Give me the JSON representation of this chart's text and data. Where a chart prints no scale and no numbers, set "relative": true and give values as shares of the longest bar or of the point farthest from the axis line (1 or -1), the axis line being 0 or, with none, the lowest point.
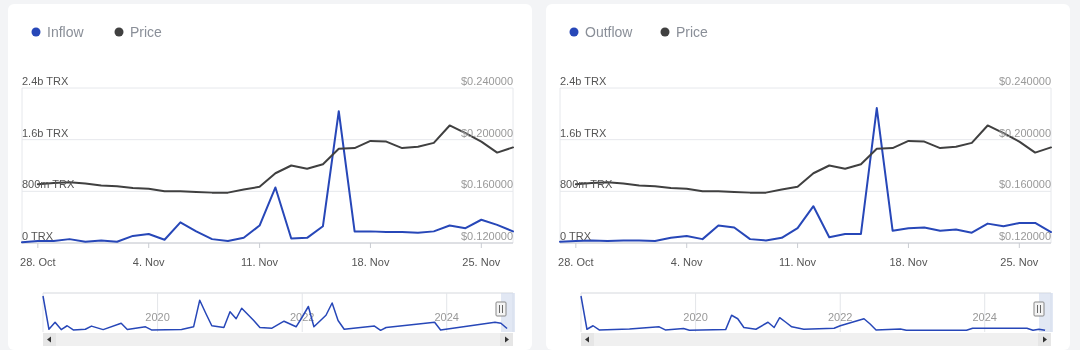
{
  "chart_data": [
    {
      "type": "line",
      "legend": "top left",
      "grid": "y",
      "xlim": [
        "2024-10-27",
        "2024-11-27"
      ],
      "x": [
        "2024-10-27",
        "2024-10-28",
        "2024-10-29",
        "2024-10-30",
        "2024-10-31",
        "2024-11-01",
        "2024-11-02",
        "2024-11-03",
        "2024-11-04",
        "2024-11-05",
        "2024-11-06",
        "2024-11-07",
        "2024-11-08",
        "2024-11-09",
        "2024-11-10",
        "2024-11-11",
        "2024-11-12",
        "2024-11-13",
        "2024-11-14",
        "2024-11-15",
        "2024-11-16",
        "2024-11-17",
        "2024-11-18",
        "2024-11-19",
        "2024-11-20",
        "2024-11-21",
        "2024-11-22",
        "2024-11-23",
        "2024-11-24",
        "2024-11-25",
        "2024-11-26",
        "2024-11-27"
      ],
      "xticks": [
        {
          "value": "2024-10-28",
          "label": "28. Oct"
        },
        {
          "value": "2024-11-04",
          "label": "4. Nov"
        },
        {
          "value": "2024-11-11",
          "label": "11. Nov"
        },
        {
          "value": "2024-11-18",
          "label": "18. Nov"
        },
        {
          "value": "2024-11-25",
          "label": "25. Nov"
        }
      ],
      "ylim": [
        0,
        2400000000
      ],
      "yticks": [
        {
          "value": 0,
          "label": "0 TRX"
        },
        {
          "value": 800000000,
          "label": "800m TRX"
        },
        {
          "value": 1600000000,
          "label": "1.6b TRX"
        },
        {
          "value": 2400000000,
          "label": "2.4b TRX"
        }
      ],
      "y2lim": [
        0.12,
        0.24
      ],
      "y2ticks": [
        {
          "value": 0.12,
          "label": "$0.120000"
        },
        {
          "value": 0.16,
          "label": "$0.160000"
        },
        {
          "value": 0.2,
          "label": "$0.200000"
        },
        {
          "value": 0.24,
          "label": "$0.240000"
        }
      ],
      "series": [
        {
          "name": "Inflow",
          "color": "#2747b8",
          "values": [
            10000000,
            30000000,
            30000000,
            60000000,
            20000000,
            40000000,
            20000000,
            110000000,
            140000000,
            50000000,
            320000000,
            180000000,
            60000000,
            30000000,
            80000000,
            270000000,
            860000000,
            70000000,
            80000000,
            260000000,
            2040000000,
            180000000,
            180000000,
            170000000,
            170000000,
            160000000,
            180000000,
            270000000,
            230000000,
            360000000,
            280000000,
            180000000
          ]
        },
        {
          "name": "Price",
          "color": "#404040",
          "axis": "y2",
          "values": [
            null,
            0.1655,
            0.1665,
            0.167,
            0.166,
            0.1645,
            0.164,
            0.1625,
            0.162,
            0.16,
            0.16,
            0.1595,
            0.159,
            0.159,
            0.1615,
            0.1635,
            0.174,
            0.18,
            0.1775,
            0.181,
            0.193,
            0.1935,
            0.199,
            0.1985,
            0.1935,
            0.1945,
            0.1975,
            0.211,
            0.205,
            0.1985,
            0.19,
            0.194
          ]
        }
      ]
    },
    {
      "type": "line",
      "relative": true,
      "grid": "x",
      "tick_labels": "x",
      "xlim": [
        "2018-06",
        "2024-12"
      ],
      "xticks": [
        {
          "value": "2020-01",
          "label": "2020"
        },
        {
          "value": "2022-01",
          "label": "2022"
        },
        {
          "value": "2024-01",
          "label": "2024"
        }
      ],
      "series": [
        {
          "color": "#2747b8",
          "x": [
            "2018-06",
            "2018-07",
            "2018-08",
            "2018-09",
            "2018-10",
            "2018-11",
            "2019-01",
            "2019-02",
            "2019-04",
            "2019-07",
            "2019-08",
            "2019-11",
            "2019-12",
            "2020-05",
            "2020-07",
            "2020-08",
            "2020-09",
            "2020-10",
            "2020-12",
            "2021-01",
            "2021-02",
            "2021-03",
            "2021-05",
            "2021-06",
            "2021-08",
            "2021-10",
            "2021-12",
            "2022-01",
            "2022-02",
            "2022-03",
            "2022-05",
            "2022-06",
            "2022-07",
            "2022-08",
            "2023-01",
            "2023-02",
            "2023-03",
            "2023-11",
            "2023-12",
            "2024-09",
            "2024-10",
            "2024-11"
          ],
          "values": [
            1,
            0.05,
            0.25,
            0.04,
            0.15,
            0.03,
            0.05,
            0.14,
            0.04,
            0.22,
            0.04,
            0.12,
            0.03,
            0.04,
            0.12,
            0.88,
            0.5,
            0.15,
            0.1,
            0.55,
            0.35,
            0.65,
            0.3,
            0.1,
            0.08,
            0.28,
            0.12,
            0.4,
            0.7,
            0.12,
            0.45,
            0.8,
            0.3,
            0.05,
            0.14,
            0.02,
            0.1,
            0.25,
            0.03,
            0.25,
            0.22,
            0.07
          ]
        }
      ]
    },
    {
      "type": "line",
      "legend": "top left",
      "grid": "y",
      "xlim": [
        "2024-10-27",
        "2024-11-27"
      ],
      "x": [
        "2024-10-27",
        "2024-10-28",
        "2024-10-29",
        "2024-10-30",
        "2024-10-31",
        "2024-11-01",
        "2024-11-02",
        "2024-11-03",
        "2024-11-04",
        "2024-11-05",
        "2024-11-06",
        "2024-11-07",
        "2024-11-08",
        "2024-11-09",
        "2024-11-10",
        "2024-11-11",
        "2024-11-12",
        "2024-11-13",
        "2024-11-14",
        "2024-11-15",
        "2024-11-16",
        "2024-11-17",
        "2024-11-18",
        "2024-11-19",
        "2024-11-20",
        "2024-11-21",
        "2024-11-22",
        "2024-11-23",
        "2024-11-24",
        "2024-11-25",
        "2024-11-26",
        "2024-11-27"
      ],
      "xticks": [
        {
          "value": "2024-10-28",
          "label": "28. Oct"
        },
        {
          "value": "2024-11-04",
          "label": "4. Nov"
        },
        {
          "value": "2024-11-11",
          "label": "11. Nov"
        },
        {
          "value": "2024-11-18",
          "label": "18. Nov"
        },
        {
          "value": "2024-11-25",
          "label": "25. Nov"
        }
      ],
      "ylim": [
        0,
        2400000000
      ],
      "yticks": [
        {
          "value": 0,
          "label": "0 TRX"
        },
        {
          "value": 800000000,
          "label": "800m TRX"
        },
        {
          "value": 1600000000,
          "label": "1.6b TRX"
        },
        {
          "value": 2400000000,
          "label": "2.4b TRX"
        }
      ],
      "y2lim": [
        0.12,
        0.24
      ],
      "y2ticks": [
        {
          "value": 0.12,
          "label": "$0.120000"
        },
        {
          "value": 0.16,
          "label": "$0.160000"
        },
        {
          "value": 0.2,
          "label": "$0.200000"
        },
        {
          "value": 0.24,
          "label": "$0.240000"
        }
      ],
      "series": [
        {
          "name": "Outflow",
          "color": "#2747b8",
          "values": [
            20000000,
            30000000,
            40000000,
            30000000,
            40000000,
            40000000,
            30000000,
            80000000,
            110000000,
            60000000,
            270000000,
            240000000,
            60000000,
            40000000,
            80000000,
            230000000,
            570000000,
            90000000,
            140000000,
            140000000,
            2090000000,
            190000000,
            230000000,
            240000000,
            190000000,
            210000000,
            160000000,
            300000000,
            260000000,
            310000000,
            310000000,
            170000000
          ]
        },
        {
          "name": "Price",
          "color": "#404040",
          "axis": "y2",
          "values": [
            null,
            0.1655,
            0.1665,
            0.167,
            0.166,
            0.1645,
            0.164,
            0.1625,
            0.162,
            0.16,
            0.16,
            0.1595,
            0.159,
            0.159,
            0.1615,
            0.1635,
            0.174,
            0.18,
            0.1775,
            0.181,
            0.193,
            0.1935,
            0.199,
            0.1985,
            0.1935,
            0.1945,
            0.1975,
            0.211,
            0.205,
            0.1985,
            0.19,
            0.194
          ]
        }
      ]
    },
    {
      "type": "line",
      "relative": true,
      "grid": "x",
      "tick_labels": "x",
      "xlim": [
        "2018-06",
        "2024-12"
      ],
      "xticks": [
        {
          "value": "2020-01",
          "label": "2020"
        },
        {
          "value": "2022-01",
          "label": "2022"
        },
        {
          "value": "2024-01",
          "label": "2024"
        }
      ],
      "series": [
        {
          "color": "#2747b8",
          "x": [
            "2018-06",
            "2018-07",
            "2018-08",
            "2018-09",
            "2019-02",
            "2019-07",
            "2019-08",
            "2019-11",
            "2019-12",
            "2020-06",
            "2020-07",
            "2020-08",
            "2020-09",
            "2020-11",
            "2021-01",
            "2021-02",
            "2021-03",
            "2021-04",
            "2021-05",
            "2021-07",
            "2021-12",
            "2022-01",
            "2022-05",
            "2022-06",
            "2022-07",
            "2022-11",
            "2022-12",
            "2023-10",
            "2023-11",
            "2024-08",
            "2024-09",
            "2024-10",
            "2024-11"
          ],
          "values": [
            1,
            0.05,
            0.15,
            0.03,
            0.06,
            0.12,
            0.03,
            0.07,
            0.02,
            0.04,
            0.45,
            0.35,
            0.1,
            0.05,
            0.25,
            0.1,
            0.38,
            0.25,
            0.12,
            0.05,
            0.08,
            0.15,
            0.35,
            0.2,
            0.03,
            0.06,
            0.02,
            0.02,
            0.08,
            0.08,
            0.02,
            0.05,
            0.02
          ]
        }
      ]
    }
  ]
}
